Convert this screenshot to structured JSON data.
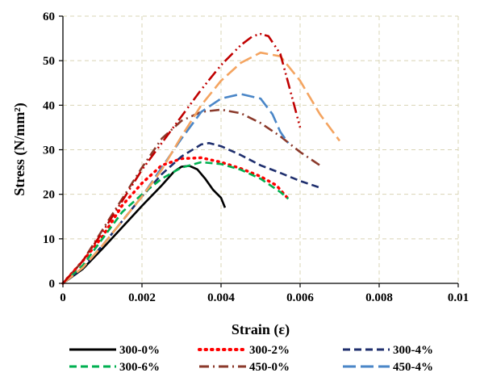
{
  "chart_data": {
    "type": "line",
    "title": "",
    "xlabel": "Strain (ε)",
    "ylabel": "Stress (N/mm²)",
    "xlim": [
      0,
      0.01
    ],
    "ylim": [
      0,
      60
    ],
    "x_ticks": [
      "0",
      "0.002",
      "0.004",
      "0.006",
      "0.008",
      "0.01"
    ],
    "y_ticks": [
      "0",
      "10",
      "20",
      "30",
      "40",
      "50",
      "60"
    ],
    "grid": true,
    "legend_position": "bottom",
    "series": [
      {
        "name": "300-0%",
        "color": "#000000",
        "dash": "solid",
        "x": [
          0,
          0.0005,
          0.001,
          0.0015,
          0.002,
          0.0025,
          0.0028,
          0.003,
          0.0032,
          0.0034,
          0.0036,
          0.0038,
          0.004,
          0.0041
        ],
        "y": [
          0,
          3.2,
          7.8,
          12.6,
          17.4,
          22,
          25,
          26.2,
          26.4,
          25.6,
          23.5,
          21,
          19.2,
          17
        ]
      },
      {
        "name": "300-2%",
        "color": "#ff0000",
        "dash": "dot",
        "x": [
          0,
          0.0005,
          0.001,
          0.0015,
          0.002,
          0.0025,
          0.003,
          0.0035,
          0.004,
          0.0045,
          0.005,
          0.0054,
          0.0056,
          0.0057
        ],
        "y": [
          0,
          5,
          10.5,
          17.5,
          22.5,
          26.5,
          28,
          28.2,
          27.2,
          25.8,
          24,
          22,
          20,
          19
        ]
      },
      {
        "name": "300-4%",
        "color": "#1f2f6e",
        "dash": "dash",
        "x": [
          0,
          0.0005,
          0.001,
          0.0015,
          0.002,
          0.0025,
          0.003,
          0.0035,
          0.0037,
          0.004,
          0.0045,
          0.005,
          0.0055,
          0.006,
          0.0065
        ],
        "y": [
          0,
          3.5,
          8.5,
          14,
          19.5,
          24.5,
          28.5,
          31.2,
          31.5,
          30.8,
          28.8,
          26.5,
          24.8,
          23,
          21.5
        ]
      },
      {
        "name": "300-6%",
        "color": "#00b050",
        "dash": "dash",
        "x": [
          0,
          0.0005,
          0.001,
          0.0015,
          0.002,
          0.0025,
          0.003,
          0.0035,
          0.004,
          0.0045,
          0.005,
          0.0055,
          0.0057
        ],
        "y": [
          0,
          4,
          10,
          16,
          20,
          23.5,
          26,
          27.2,
          26.8,
          25.5,
          23.5,
          20.5,
          19
        ]
      },
      {
        "name": "450-0%",
        "color": "#8b3a2b",
        "dash": "dashdot",
        "x": [
          0,
          0.0005,
          0.001,
          0.0015,
          0.002,
          0.0025,
          0.003,
          0.0035,
          0.004,
          0.0045,
          0.005,
          0.0055,
          0.006,
          0.0065
        ],
        "y": [
          0,
          5,
          12,
          19,
          26,
          32.5,
          36.5,
          38.5,
          39,
          38.2,
          36,
          33,
          29.5,
          26.5
        ]
      },
      {
        "name": "450-4%",
        "color": "#4a86c7",
        "dash": "longdash",
        "x": [
          0,
          0.0005,
          0.001,
          0.0015,
          0.002,
          0.0025,
          0.003,
          0.0035,
          0.004,
          0.0045,
          0.005,
          0.0053,
          0.0055,
          0.0057
        ],
        "y": [
          0,
          3.5,
          8.5,
          14,
          19.5,
          26,
          32.5,
          38.5,
          41.5,
          42.5,
          41.5,
          38,
          34,
          31.5
        ]
      },
      {
        "name": "",
        "color": "#f4a460",
        "dash": "longdash",
        "x": [
          0,
          0.0005,
          0.001,
          0.0015,
          0.002,
          0.0025,
          0.003,
          0.0035,
          0.004,
          0.0045,
          0.005,
          0.0055,
          0.006,
          0.0065,
          0.007
        ],
        "y": [
          0,
          3.5,
          8.5,
          14,
          19.5,
          25.5,
          33,
          40,
          45.5,
          49.5,
          51.8,
          51,
          45.5,
          38,
          32
        ]
      },
      {
        "name": "",
        "color": "#c00000",
        "dash": "dashdotdot",
        "x": [
          0,
          0.0005,
          0.001,
          0.0015,
          0.002,
          0.0025,
          0.003,
          0.0035,
          0.004,
          0.0045,
          0.0048,
          0.005,
          0.0052,
          0.0055,
          0.0057,
          0.006
        ],
        "y": [
          0,
          5,
          11.5,
          18.5,
          25.5,
          31.5,
          37.5,
          43.5,
          49,
          53.5,
          55.5,
          56,
          55.5,
          51.5,
          45,
          35
        ]
      }
    ]
  }
}
